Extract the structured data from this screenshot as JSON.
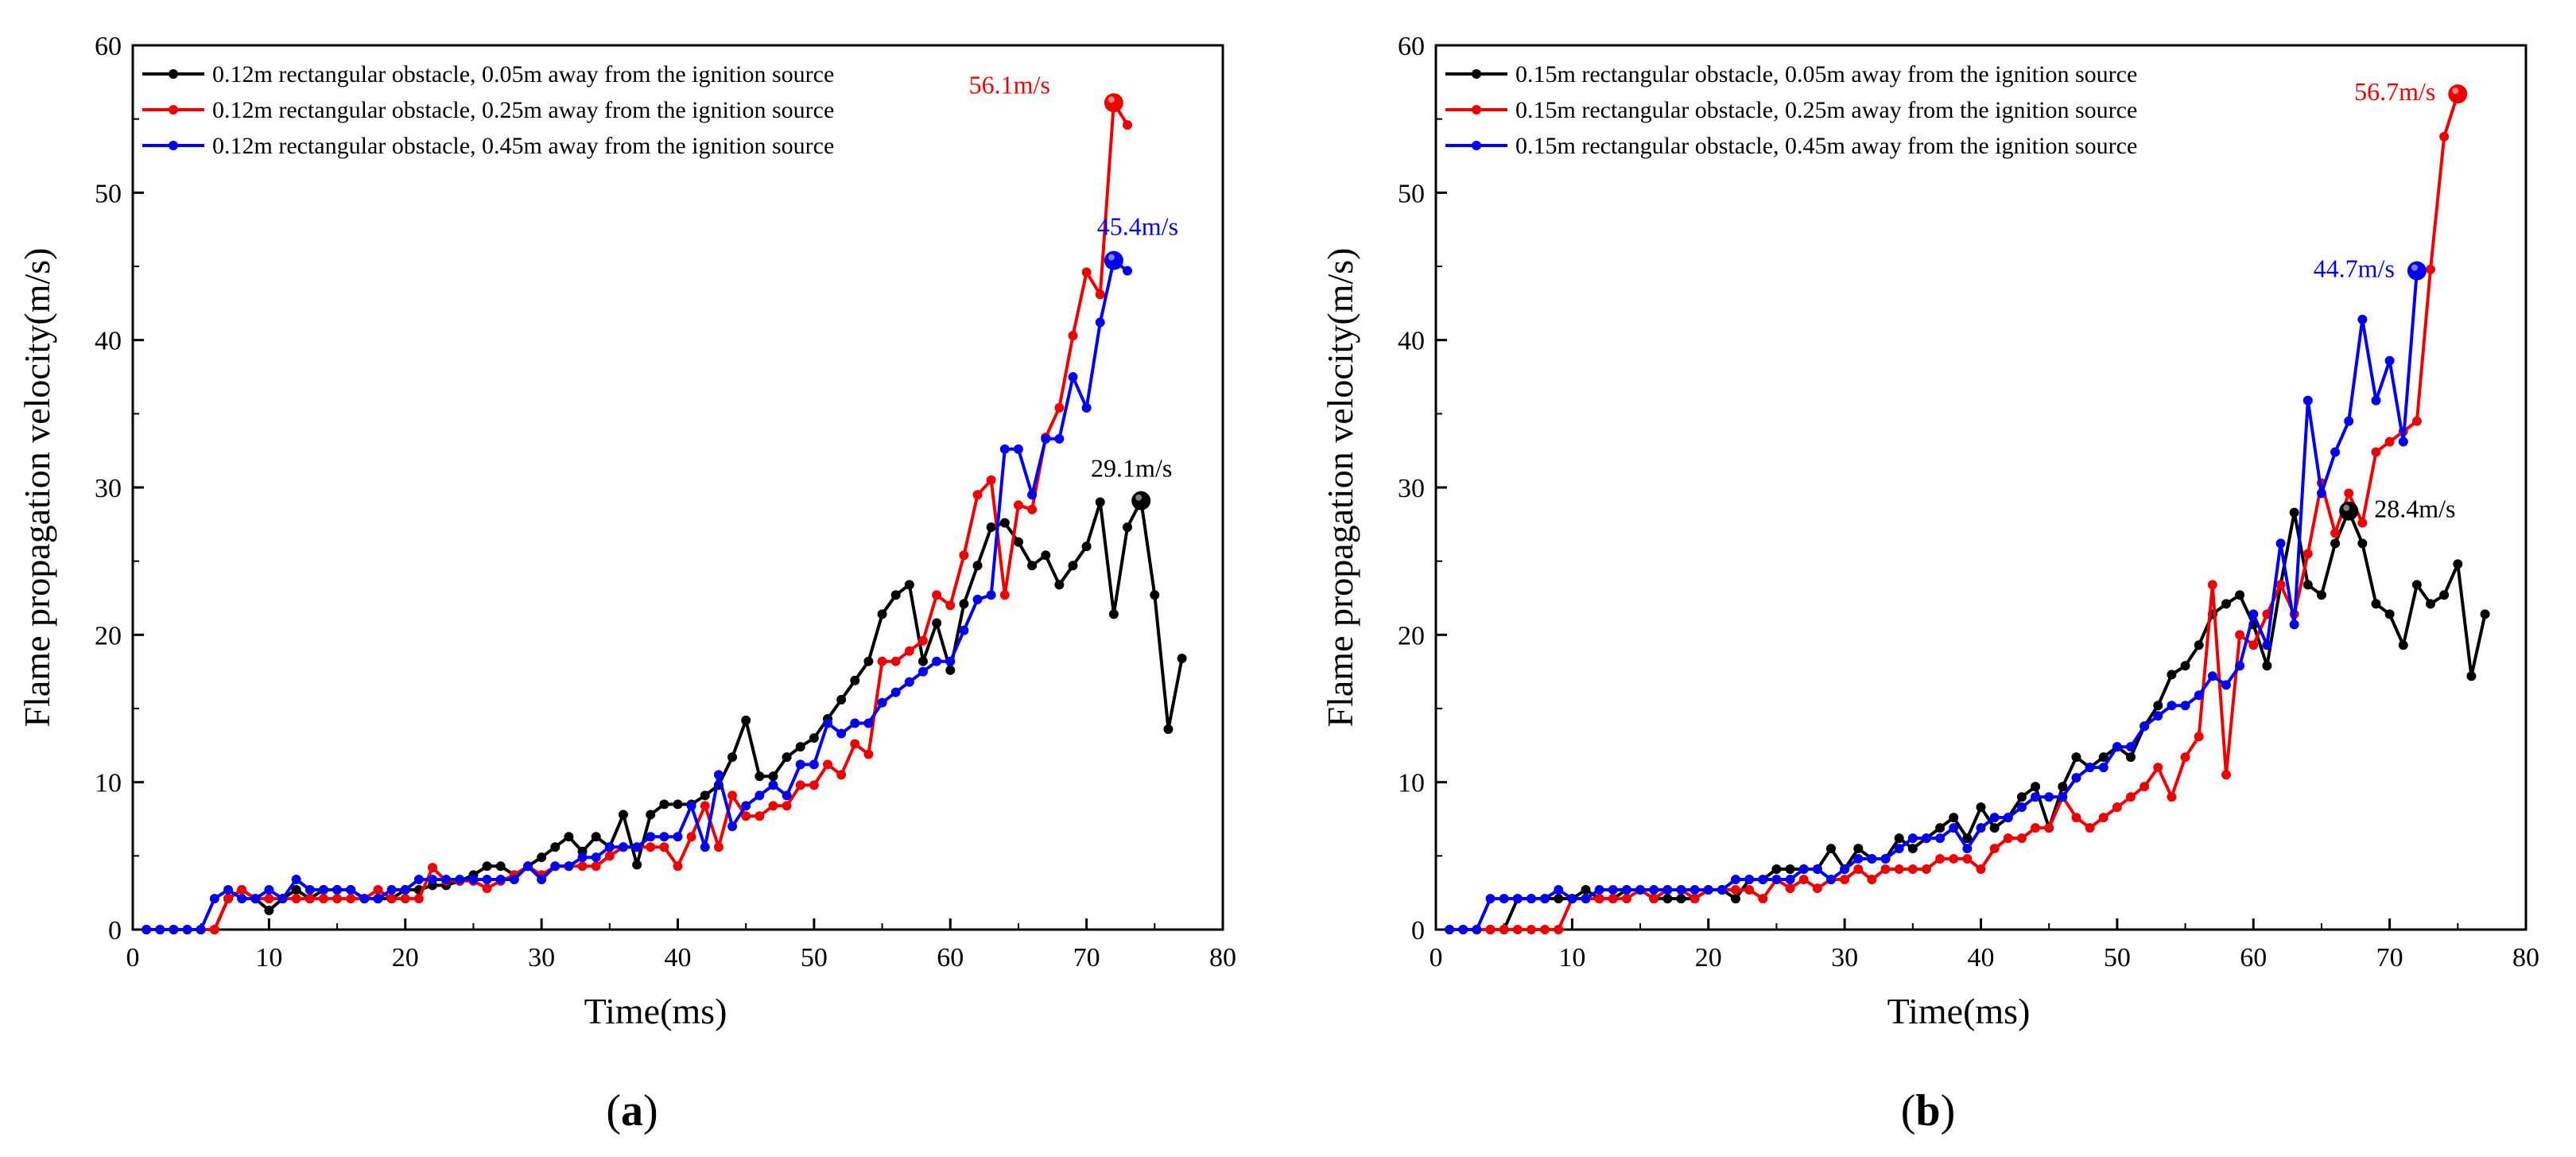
{
  "figure": {
    "panel_labels": [
      "(a)",
      "(b)"
    ]
  },
  "chart_data": [
    {
      "type": "line",
      "panel": "a",
      "panel_label": {
        "open": "(",
        "letter": "a",
        "close": ")"
      },
      "xlabel": "Time(ms)",
      "ylabel": "Flame propagation velocity(m/s)",
      "xlim": [
        0,
        80
      ],
      "ylim": [
        0,
        60
      ],
      "xticks": [
        0,
        10,
        20,
        30,
        40,
        50,
        60,
        70,
        80
      ],
      "yticks": [
        0,
        10,
        20,
        30,
        40,
        50,
        60
      ],
      "legend_position": "top-left",
      "series": [
        {
          "name": "0.12m rectangular obstacle, 0.05m away from the ignition source",
          "color": "#000000",
          "x": [
            1,
            2,
            3,
            4,
            5,
            6,
            7,
            8,
            9,
            10,
            11,
            12,
            13,
            14,
            15,
            16,
            17,
            18,
            19,
            20,
            21,
            22,
            23,
            24,
            25,
            26,
            27,
            28,
            29,
            30,
            31,
            32,
            33,
            34,
            35,
            36,
            37,
            38,
            39,
            40,
            41,
            42,
            43,
            44,
            45,
            46,
            47,
            48,
            49,
            50,
            51,
            52,
            53,
            54,
            55,
            56,
            57,
            58,
            59,
            60,
            61,
            62,
            63,
            64,
            65,
            66,
            67,
            68,
            69,
            70,
            71,
            72,
            73,
            74,
            75,
            76,
            77
          ],
          "y": [
            0,
            0,
            0,
            0,
            0,
            0,
            2.1,
            2.7,
            2.1,
            1.3,
            2.1,
            2.7,
            2.1,
            2.7,
            2.7,
            2.7,
            2.1,
            2.1,
            2.1,
            2.7,
            2.7,
            3.0,
            3.0,
            3.3,
            3.7,
            4.3,
            4.3,
            3.7,
            4.3,
            4.9,
            5.6,
            6.3,
            5.3,
            6.3,
            5.6,
            7.8,
            4.4,
            7.8,
            8.5,
            8.5,
            8.5,
            9.1,
            9.8,
            11.7,
            14.2,
            10.4,
            10.4,
            11.7,
            12.4,
            13.0,
            14.3,
            15.6,
            16.9,
            18.2,
            21.4,
            22.7,
            23.4,
            18.2,
            20.8,
            17.6,
            22.1,
            24.7,
            27.3,
            27.6,
            26.3,
            24.7,
            25.4,
            23.4,
            24.7,
            26.0,
            29.0,
            21.4,
            27.3,
            29.1,
            22.7,
            13.6,
            18.4
          ]
        },
        {
          "name": "0.12m rectangular obstacle, 0.25m away from the ignition source",
          "color": "#ee0000",
          "x": [
            1,
            2,
            3,
            4,
            5,
            6,
            7,
            8,
            9,
            10,
            11,
            12,
            13,
            14,
            15,
            16,
            17,
            18,
            19,
            20,
            21,
            22,
            23,
            24,
            25,
            26,
            27,
            28,
            29,
            30,
            31,
            32,
            33,
            34,
            35,
            36,
            37,
            38,
            39,
            40,
            41,
            42,
            43,
            44,
            45,
            46,
            47,
            48,
            49,
            50,
            51,
            52,
            53,
            54,
            55,
            56,
            57,
            58,
            59,
            60,
            61,
            62,
            63,
            64,
            65,
            66,
            67,
            68,
            69,
            70,
            71,
            72,
            73
          ],
          "y": [
            0,
            0,
            0,
            0,
            0,
            0,
            2.1,
            2.7,
            2.1,
            2.1,
            2.1,
            2.1,
            2.1,
            2.1,
            2.1,
            2.1,
            2.1,
            2.7,
            2.1,
            2.1,
            2.1,
            4.2,
            3.3,
            3.3,
            3.3,
            2.8,
            3.3,
            3.7,
            4.3,
            3.7,
            4.3,
            4.3,
            4.3,
            4.3,
            5.0,
            5.6,
            5.6,
            5.6,
            5.6,
            4.3,
            6.3,
            8.4,
            5.6,
            9.1,
            7.7,
            7.7,
            8.4,
            8.4,
            9.8,
            9.8,
            11.2,
            10.5,
            12.6,
            11.9,
            18.2,
            18.2,
            18.9,
            19.6,
            22.7,
            22.0,
            25.4,
            29.5,
            30.5,
            22.7,
            28.8,
            28.5,
            33.4,
            35.4,
            40.3,
            44.6,
            43.1,
            56.1,
            54.6
          ]
        },
        {
          "name": "0.12m rectangular obstacle, 0.45m away from the ignition source",
          "color": "#0000ee",
          "x": [
            1,
            2,
            3,
            4,
            5,
            6,
            7,
            8,
            9,
            10,
            11,
            12,
            13,
            14,
            15,
            16,
            17,
            18,
            19,
            20,
            21,
            22,
            23,
            24,
            25,
            26,
            27,
            28,
            29,
            30,
            31,
            32,
            33,
            34,
            35,
            36,
            37,
            38,
            39,
            40,
            41,
            42,
            43,
            44,
            45,
            46,
            47,
            48,
            49,
            50,
            51,
            52,
            53,
            54,
            55,
            56,
            57,
            58,
            59,
            60,
            61,
            62,
            63,
            64,
            65,
            66,
            67,
            68,
            69,
            70,
            71,
            72,
            73
          ],
          "y": [
            0,
            0,
            0,
            0,
            0,
            2.1,
            2.7,
            2.1,
            2.1,
            2.7,
            2.1,
            3.4,
            2.7,
            2.7,
            2.7,
            2.7,
            2.1,
            2.1,
            2.7,
            2.7,
            3.4,
            3.4,
            3.4,
            3.4,
            3.4,
            3.4,
            3.4,
            3.4,
            4.3,
            3.4,
            4.3,
            4.3,
            4.9,
            4.9,
            5.6,
            5.6,
            5.6,
            6.3,
            6.3,
            6.3,
            8.4,
            5.6,
            10.5,
            7.0,
            8.4,
            9.1,
            9.8,
            9.1,
            11.2,
            11.2,
            14.0,
            13.3,
            14.0,
            14.0,
            15.4,
            16.1,
            16.8,
            17.5,
            18.2,
            18.2,
            20.3,
            22.4,
            22.7,
            32.6,
            32.6,
            29.5,
            33.3,
            33.3,
            37.5,
            35.4,
            41.2,
            45.4,
            44.7
          ]
        }
      ],
      "annotations": [
        {
          "text": "56.1m/s",
          "x": 72,
          "y": 56.1,
          "color": "#ee0000"
        },
        {
          "text": "45.4m/s",
          "x": 72,
          "y": 45.4,
          "color": "#0000ee"
        },
        {
          "text": "29.1m/s",
          "x": 74,
          "y": 29.1,
          "color": "#000000"
        }
      ]
    },
    {
      "type": "line",
      "panel": "b",
      "panel_label": {
        "open": "(",
        "letter": "b",
        "close": ")"
      },
      "xlabel": "Time(ms)",
      "ylabel": "Flame propagation velocity(m/s)",
      "xlim": [
        0,
        80
      ],
      "ylim": [
        0,
        60
      ],
      "xticks": [
        0,
        10,
        20,
        30,
        40,
        50,
        60,
        70,
        80
      ],
      "yticks": [
        0,
        10,
        20,
        30,
        40,
        50,
        60
      ],
      "legend_position": "top-left",
      "series": [
        {
          "name": "0.15m rectangular obstacle, 0.05m away from the ignition source",
          "color": "#000000",
          "x": [
            1,
            2,
            3,
            4,
            5,
            6,
            7,
            8,
            9,
            10,
            11,
            12,
            13,
            14,
            15,
            16,
            17,
            18,
            19,
            20,
            21,
            22,
            23,
            24,
            25,
            26,
            27,
            28,
            29,
            30,
            31,
            32,
            33,
            34,
            35,
            36,
            37,
            38,
            39,
            40,
            41,
            42,
            43,
            44,
            45,
            46,
            47,
            48,
            49,
            50,
            51,
            52,
            53,
            54,
            55,
            56,
            57,
            58,
            59,
            60,
            61,
            62,
            63,
            64,
            65,
            66,
            67,
            68,
            69,
            70,
            71,
            72,
            73,
            74,
            75,
            76,
            77
          ],
          "y": [
            0,
            0,
            0,
            0,
            0,
            2.1,
            2.1,
            2.1,
            2.1,
            2.1,
            2.7,
            2.1,
            2.1,
            2.7,
            2.7,
            2.1,
            2.1,
            2.1,
            2.1,
            2.7,
            2.7,
            2.1,
            3.4,
            3.4,
            4.1,
            4.1,
            4.1,
            4.1,
            5.5,
            4.1,
            5.5,
            4.8,
            4.8,
            6.2,
            5.5,
            6.2,
            6.9,
            7.6,
            6.2,
            8.3,
            6.9,
            7.6,
            9.0,
            9.7,
            6.9,
            9.7,
            11.7,
            11.0,
            11.7,
            12.4,
            11.7,
            13.8,
            15.2,
            17.3,
            17.9,
            19.3,
            21.4,
            22.1,
            22.7,
            20.7,
            17.9,
            23.4,
            28.3,
            23.4,
            22.7,
            26.2,
            28.4,
            26.2,
            22.1,
            21.4,
            19.3,
            23.4,
            22.1,
            22.7,
            24.8,
            17.2,
            21.4
          ]
        },
        {
          "name": "0.15m rectangular obstacle, 0.25m away from the ignition source",
          "color": "#ee0000",
          "x": [
            1,
            2,
            3,
            4,
            5,
            6,
            7,
            8,
            9,
            10,
            11,
            12,
            13,
            14,
            15,
            16,
            17,
            18,
            19,
            20,
            21,
            22,
            23,
            24,
            25,
            26,
            27,
            28,
            29,
            30,
            31,
            32,
            33,
            34,
            35,
            36,
            37,
            38,
            39,
            40,
            41,
            42,
            43,
            44,
            45,
            46,
            47,
            48,
            49,
            50,
            51,
            52,
            53,
            54,
            55,
            56,
            57,
            58,
            59,
            60,
            61,
            62,
            63,
            64,
            65,
            66,
            67,
            68,
            69,
            70,
            71,
            72,
            73,
            74,
            75
          ],
          "y": [
            0,
            0,
            0,
            0,
            0,
            0,
            0,
            0,
            0,
            2.1,
            2.1,
            2.1,
            2.1,
            2.1,
            2.7,
            2.1,
            2.7,
            2.7,
            2.1,
            2.7,
            2.7,
            2.7,
            2.7,
            2.1,
            3.4,
            2.8,
            3.4,
            2.8,
            3.4,
            3.4,
            4.1,
            3.4,
            4.1,
            4.1,
            4.1,
            4.1,
            4.8,
            4.8,
            4.8,
            4.1,
            5.5,
            6.2,
            6.2,
            6.9,
            6.9,
            9.0,
            7.6,
            6.9,
            7.6,
            8.3,
            9.0,
            9.7,
            11.0,
            9.0,
            11.7,
            13.1,
            23.4,
            10.5,
            20.0,
            19.3,
            21.4,
            23.4,
            21.4,
            25.5,
            30.3,
            26.9,
            29.6,
            27.6,
            32.4,
            33.1,
            33.8,
            34.5,
            44.8,
            53.8,
            56.7
          ]
        },
        {
          "name": "0.15m rectangular obstacle, 0.45m away from the ignition source",
          "color": "#0000ee",
          "x": [
            1,
            2,
            3,
            4,
            5,
            6,
            7,
            8,
            9,
            10,
            11,
            12,
            13,
            14,
            15,
            16,
            17,
            18,
            19,
            20,
            21,
            22,
            23,
            24,
            25,
            26,
            27,
            28,
            29,
            30,
            31,
            32,
            33,
            34,
            35,
            36,
            37,
            38,
            39,
            40,
            41,
            42,
            43,
            44,
            45,
            46,
            47,
            48,
            49,
            50,
            51,
            52,
            53,
            54,
            55,
            56,
            57,
            58,
            59,
            60,
            61,
            62,
            63,
            64,
            65,
            66,
            67,
            68,
            69,
            70,
            71,
            72
          ],
          "y": [
            0,
            0,
            0,
            2.1,
            2.1,
            2.1,
            2.1,
            2.1,
            2.7,
            2.1,
            2.1,
            2.7,
            2.7,
            2.7,
            2.7,
            2.7,
            2.7,
            2.7,
            2.7,
            2.7,
            2.7,
            3.4,
            3.4,
            3.4,
            3.4,
            3.4,
            4.1,
            4.1,
            3.4,
            4.1,
            4.8,
            4.8,
            4.8,
            5.5,
            6.2,
            6.2,
            6.2,
            6.9,
            5.5,
            6.9,
            7.6,
            7.6,
            8.3,
            9.0,
            9.0,
            9.0,
            10.3,
            11.0,
            11.0,
            12.4,
            12.4,
            13.8,
            14.5,
            15.2,
            15.2,
            15.9,
            17.2,
            16.6,
            17.9,
            21.4,
            19.3,
            26.2,
            20.7,
            35.9,
            29.6,
            32.4,
            34.5,
            41.4,
            35.9,
            38.6,
            33.1,
            44.7
          ]
        }
      ],
      "annotations": [
        {
          "text": "56.7m/s",
          "x": 75,
          "y": 56.7,
          "color": "#ee0000"
        },
        {
          "text": "44.7m/s",
          "x": 72,
          "y": 44.7,
          "color": "#0000ee"
        },
        {
          "text": "28.4m/s",
          "x": 67,
          "y": 28.4,
          "color": "#000000"
        }
      ]
    }
  ]
}
